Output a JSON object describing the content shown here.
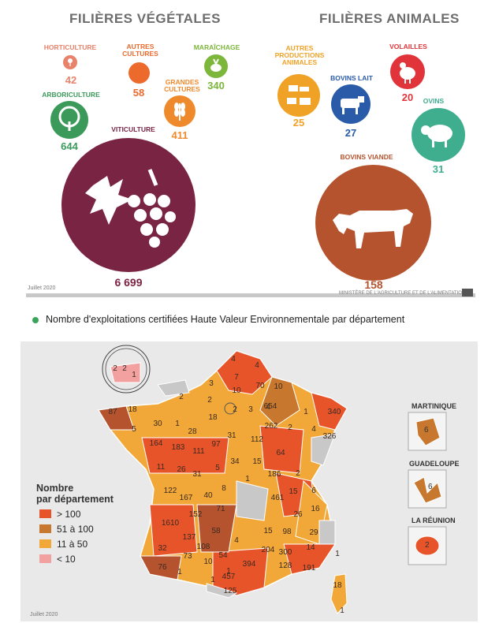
{
  "top": {
    "heading_vegetal": "FILIÈRES VÉGÉTALES",
    "heading_animal": "FILIÈRES ANIMALES",
    "vegetal": [
      {
        "key": "horticulture",
        "label": "HORTICULTURE",
        "value": "42",
        "color": "#e8826a",
        "icon": "flower-icon"
      },
      {
        "key": "autres_cultures",
        "label": "AUTRES CULTURES",
        "value": "58",
        "color": "#ec6b2c",
        "icon": "blank-circle"
      },
      {
        "key": "maraichage",
        "label": "MARAÎCHAGE",
        "value": "340",
        "color": "#7cb63b",
        "icon": "vegetable-icon"
      },
      {
        "key": "grandes_cultures",
        "label": "GRANDES CULTURES",
        "value": "411",
        "color": "#ef8a2c",
        "icon": "wheat-icon"
      },
      {
        "key": "arboriculture",
        "label": "ARBORICULTURE",
        "value": "644",
        "color": "#3b9a5a",
        "icon": "tree-icon"
      },
      {
        "key": "viticulture",
        "label": "VITICULTURE",
        "value": "6 699",
        "color": "#7a2444",
        "icon": "grape-icon"
      }
    ],
    "animal": [
      {
        "key": "autres_productions",
        "label": "AUTRES PRODUCTIONS ANIMALES",
        "value": "25",
        "color": "#f0a226",
        "icon": "farm-animals-icon"
      },
      {
        "key": "bovins_lait",
        "label": "BOVINS LAIT",
        "value": "27",
        "color": "#2a5ba8",
        "icon": "dairy-cow-icon"
      },
      {
        "key": "volailles",
        "label": "VOLAILLES",
        "value": "20",
        "color": "#e0343a",
        "icon": "chicken-icon"
      },
      {
        "key": "ovins",
        "label": "OVINS",
        "value": "31",
        "color": "#3fae8e",
        "icon": "sheep-icon"
      },
      {
        "key": "bovins_viande",
        "label": "BOVINS VIANDE",
        "value": "158",
        "color": "#b5532f",
        "icon": "beef-cow-icon"
      }
    ],
    "date": "Juillet 2020",
    "ministry": "MINISTÈRE DE L'AGRICULTURE ET DE L'ALIMENTATION"
  },
  "map": {
    "caption": "Nombre d'exploitations certifiées Haute Valeur Environnementale par département",
    "legend_title_1": "Nombre",
    "legend_title_2": "par département",
    "legend": [
      {
        "label": "> 100",
        "color": "#e8542a"
      },
      {
        "label": "51 à 100",
        "color": "#c8782e"
      },
      {
        "label": "11 à 50",
        "color": "#f2a838"
      },
      {
        "label": "< 10",
        "color": "#f3a0a0"
      }
    ],
    "overseas": [
      {
        "label": "MARTINIQUE",
        "value": "6"
      },
      {
        "label": "GUADELOUPE",
        "value": "6"
      },
      {
        "label": "LA RÉUNION",
        "value": "2"
      }
    ],
    "date": "Juillet 2020",
    "dept_values": [
      {
        "v": "4"
      },
      {
        "v": "4"
      },
      {
        "v": "3"
      },
      {
        "v": "7"
      },
      {
        "v": "2"
      },
      {
        "v": "2"
      },
      {
        "v": "10"
      },
      {
        "v": "70"
      },
      {
        "v": "10"
      },
      {
        "v": "87"
      },
      {
        "v": "18"
      },
      {
        "v": "3"
      },
      {
        "v": "4"
      },
      {
        "v": "654"
      },
      {
        "v": "1"
      },
      {
        "v": "340"
      },
      {
        "v": "5"
      },
      {
        "v": "30"
      },
      {
        "v": "1"
      },
      {
        "v": "18"
      },
      {
        "v": "2"
      },
      {
        "v": "262"
      },
      {
        "v": "2"
      },
      {
        "v": "4"
      },
      {
        "v": "326"
      },
      {
        "v": "164"
      },
      {
        "v": "183"
      },
      {
        "v": "28"
      },
      {
        "v": "97"
      },
      {
        "v": "31"
      },
      {
        "v": "112"
      },
      {
        "v": "111"
      },
      {
        "v": "64"
      },
      {
        "v": "11"
      },
      {
        "v": "26"
      },
      {
        "v": "31"
      },
      {
        "v": "5"
      },
      {
        "v": "34"
      },
      {
        "v": "15"
      },
      {
        "v": "186"
      },
      {
        "v": "2"
      },
      {
        "v": "1"
      },
      {
        "v": "122"
      },
      {
        "v": "167"
      },
      {
        "v": "40"
      },
      {
        "v": "8"
      },
      {
        "v": "461"
      },
      {
        "v": "15"
      },
      {
        "v": "6"
      },
      {
        "v": "152"
      },
      {
        "v": "71"
      },
      {
        "v": "26"
      },
      {
        "v": "16"
      },
      {
        "v": "1610"
      },
      {
        "v": "58"
      },
      {
        "v": "137"
      },
      {
        "v": "4"
      },
      {
        "v": "32"
      },
      {
        "v": "108"
      },
      {
        "v": "15"
      },
      {
        "v": "98"
      },
      {
        "v": "29"
      },
      {
        "v": "73"
      },
      {
        "v": "54"
      },
      {
        "v": "204"
      },
      {
        "v": "300"
      },
      {
        "v": "14"
      },
      {
        "v": "76"
      },
      {
        "v": "10"
      },
      {
        "v": "394"
      },
      {
        "v": "128"
      },
      {
        "v": "191"
      },
      {
        "v": "1"
      },
      {
        "v": "1"
      },
      {
        "v": "1"
      },
      {
        "v": "457"
      },
      {
        "v": "18"
      },
      {
        "v": "125"
      },
      {
        "v": "1"
      },
      {
        "v": "1"
      },
      {
        "v": "2"
      },
      {
        "v": "2"
      },
      {
        "v": "1"
      }
    ]
  }
}
